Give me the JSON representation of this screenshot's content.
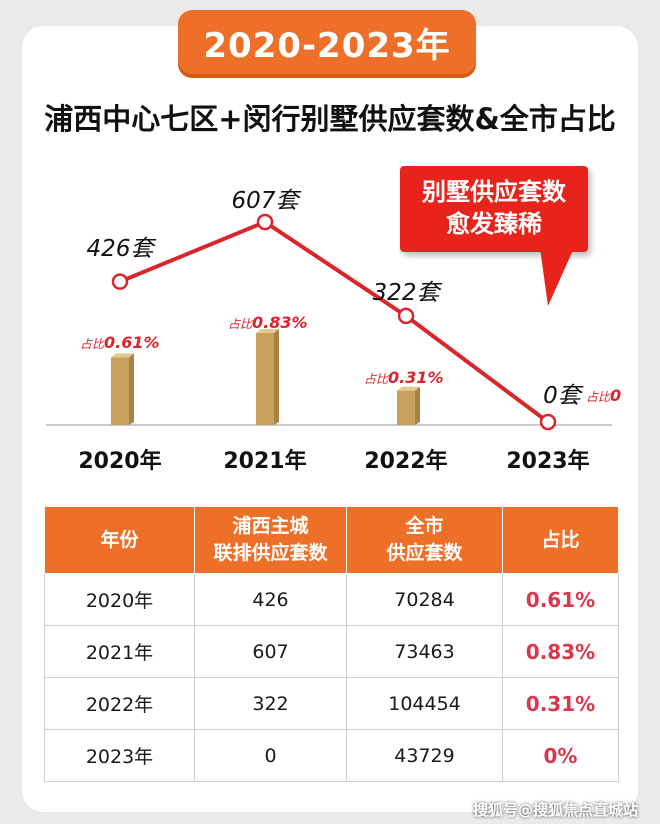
{
  "banner": "2020-2023年",
  "title": "浦西中心七区+闵行别墅供应套数&全市占比",
  "callout": [
    "别墅供应套数",
    "愈发臻稀"
  ],
  "chart_data": {
    "type": "line",
    "categories": [
      "2020年",
      "2021年",
      "2022年",
      "2023年"
    ],
    "series": [
      {
        "values": [
          426,
          607,
          322,
          0
        ],
        "point_labels": [
          "426套",
          "607套",
          "322套",
          "0套"
        ]
      }
    ],
    "bars": {
      "values": [
        0.61,
        0.83,
        0.31,
        0
      ],
      "label_prefix": "占比",
      "value_labels": [
        "0.61%",
        "0.83%",
        "0.31%",
        "0"
      ]
    },
    "line_color": "#d9252b",
    "bar_color": "#c8a15c"
  },
  "table": {
    "headers": [
      [
        "年份"
      ],
      [
        "浦西主城",
        "联排供应套数"
      ],
      [
        "全市",
        "供应套数"
      ],
      [
        "占比"
      ]
    ],
    "rows": [
      [
        "2020年",
        "426",
        "70284",
        "0.61%"
      ],
      [
        "2021年",
        "607",
        "73463",
        "0.83%"
      ],
      [
        "2022年",
        "322",
        "104454",
        "0.31%"
      ],
      [
        "2023年",
        "0",
        "43729",
        "0%"
      ]
    ]
  },
  "watermark": "搜狐号@搜狐焦点直城站"
}
